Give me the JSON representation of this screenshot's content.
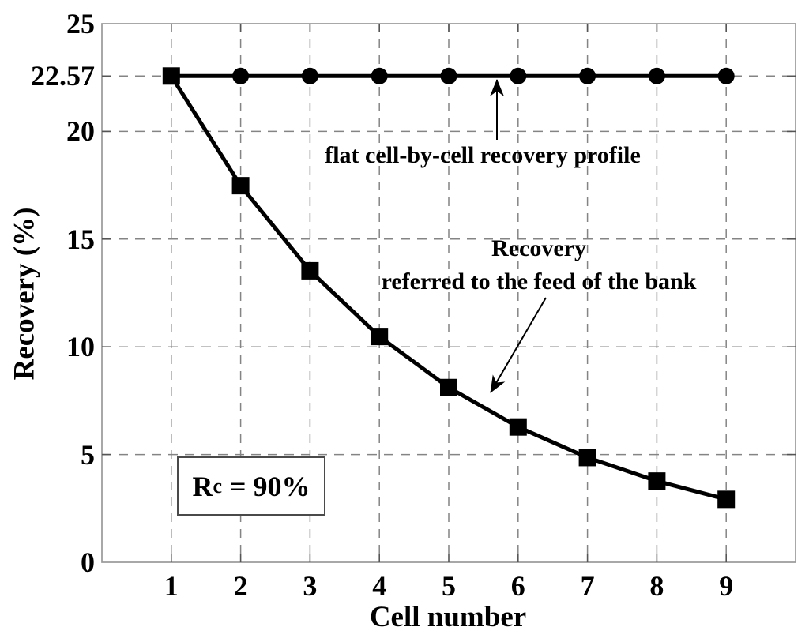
{
  "figure": {
    "background": "#ffffff",
    "axis_color": "#999999",
    "tick_color": "#555555",
    "grid_color": "#848484",
    "data_color": "#000000"
  },
  "chart_data": {
    "type": "line",
    "title": "",
    "xlabel": "Cell number",
    "ylabel": "Recovery (%)",
    "x": [
      1,
      2,
      3,
      4,
      5,
      6,
      7,
      8,
      9
    ],
    "xlim": [
      0,
      10
    ],
    "ylim": [
      0,
      25
    ],
    "xticks": [
      1,
      2,
      3,
      4,
      5,
      6,
      7,
      8,
      9
    ],
    "yticks": [
      0,
      5,
      10,
      15,
      20,
      22.57,
      25
    ],
    "ytick_labels": [
      "0",
      "5",
      "10",
      "15",
      "20",
      "22.57",
      "25"
    ],
    "grid": "dashed",
    "grid_x": [
      1,
      2,
      3,
      4,
      5,
      6,
      7,
      8,
      9
    ],
    "grid_y": [
      5,
      10,
      15,
      20,
      22.57
    ],
    "legend_position": "none",
    "series": [
      {
        "name": "flat cell-by-cell recovery profile",
        "marker": "circle",
        "values": [
          22.57,
          22.57,
          22.57,
          22.57,
          22.57,
          22.57,
          22.57,
          22.57,
          22.57
        ]
      },
      {
        "name": "Recovery referred to the feed of the bank",
        "marker": "square",
        "values": [
          22.57,
          17.48,
          13.53,
          10.48,
          8.11,
          6.28,
          4.86,
          3.77,
          2.92
        ]
      }
    ],
    "annotations": {
      "flat": {
        "text": "flat cell-by-cell recovery profile"
      },
      "recovery": {
        "line1": "Recovery",
        "line2": "referred to the feed of the bank"
      },
      "rc_box": {
        "base": "R",
        "sup": "c",
        "rest": "= 90%"
      }
    }
  }
}
